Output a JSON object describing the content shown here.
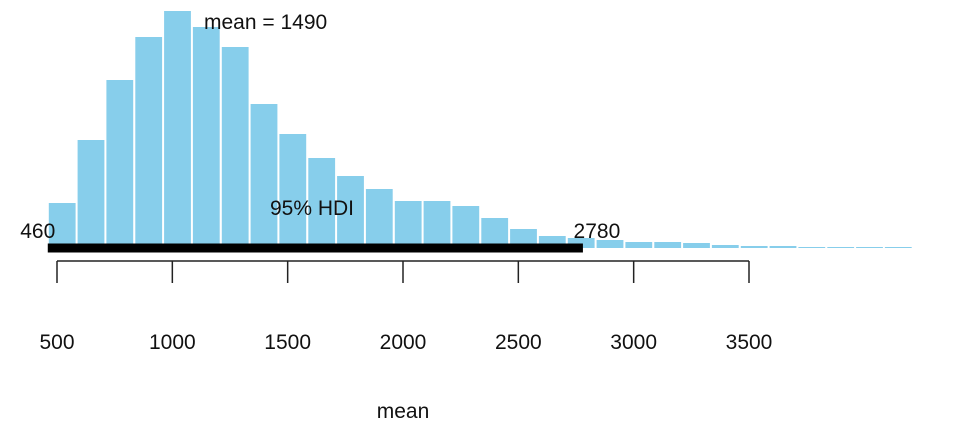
{
  "chart_data": {
    "type": "bar",
    "title": "",
    "xlabel": "mean",
    "ylabel": "",
    "xlim": [
      400,
      4200
    ],
    "x_ticks": [
      500,
      1000,
      1500,
      2000,
      2500,
      3000,
      3500
    ],
    "bin_width": 125,
    "bins_start": [
      460,
      585,
      710,
      835,
      960,
      1085,
      1210,
      1335,
      1460,
      1585,
      1710,
      1835,
      1960,
      2085,
      2210,
      2335,
      2460,
      2585,
      2710,
      2835,
      2960,
      3085,
      3210,
      3335,
      3460,
      3585,
      3710,
      3835,
      3960,
      4085
    ],
    "counts": [
      45,
      108,
      168,
      211,
      237,
      221,
      201,
      144,
      114,
      90,
      72,
      59,
      47,
      47,
      42,
      30,
      19,
      12,
      10,
      8,
      6,
      6,
      5,
      3,
      2,
      2,
      1,
      1,
      1,
      1
    ],
    "bar_color": "#87ceeb",
    "annotations": {
      "mean_label": "mean = 1490",
      "hdi_label": "95% HDI",
      "hdi_low_label": "460",
      "hdi_high_label": "2780",
      "hdi_range": [
        460,
        2780
      ]
    },
    "grid": false
  }
}
